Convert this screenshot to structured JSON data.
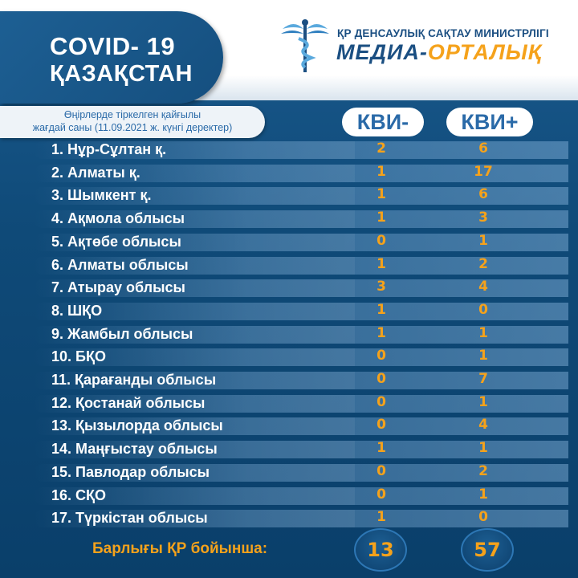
{
  "header": {
    "title_line1": "COVID- 19",
    "title_line2": "ҚАЗАҚСТАН",
    "ministry": "ҚР ДЕНСАУЛЫҚ САҚТАУ МИНИСТРЛІГІ",
    "media_part1": "МЕДИА-",
    "media_part2": "ОРТАЛЫҚ"
  },
  "subtitle": {
    "line1": "Өңірлерде тіркелген қайғылы",
    "line2": "жағдай саны (11.09.2021 ж. күнгі деректер)"
  },
  "columns": {
    "minus": "КВИ-",
    "plus": "КВИ+"
  },
  "rows": [
    {
      "label": "1. Нұр-Сұлтан қ.",
      "minus": "2",
      "plus": "6"
    },
    {
      "label": "2. Алматы қ.",
      "minus": "1",
      "plus": "17"
    },
    {
      "label": "3. Шымкент қ.",
      "minus": "1",
      "plus": "6"
    },
    {
      "label": "4. Ақмола облысы",
      "minus": "1",
      "plus": "3"
    },
    {
      "label": "5. Ақтөбе облысы",
      "minus": "0",
      "plus": "1"
    },
    {
      "label": "6. Алматы облысы",
      "minus": "1",
      "plus": "2"
    },
    {
      "label": "7. Атырау облысы",
      "minus": "3",
      "plus": "4"
    },
    {
      "label": "8. ШҚО",
      "minus": "1",
      "plus": "0"
    },
    {
      "label": "9. Жамбыл облысы",
      "minus": "1",
      "plus": "1"
    },
    {
      "label": "10. БҚО",
      "minus": "0",
      "plus": "1"
    },
    {
      "label": "11. Қарағанды облысы",
      "minus": "0",
      "plus": "7"
    },
    {
      "label": "12. Қостанай облысы",
      "minus": "0",
      "plus": "1"
    },
    {
      "label": "13. Қызылорда облысы",
      "minus": "0",
      "plus": "4"
    },
    {
      "label": "14. Маңғыстау облысы",
      "minus": "1",
      "plus": "1"
    },
    {
      "label": "15. Павлодар облысы",
      "minus": "0",
      "plus": "2"
    },
    {
      "label": "16. СҚО",
      "minus": "0",
      "plus": "1"
    },
    {
      "label": "17. Түркістан облысы",
      "minus": "1",
      "plus": "0"
    }
  ],
  "totals": {
    "label": "Барлығы ҚР бойынша:",
    "minus": "13",
    "plus": "57"
  },
  "colors": {
    "accent": "#f5a21b",
    "brand_blue": "#1b4f82",
    "background": "#0f4a78"
  },
  "icons": {
    "logo": "caduceus-icon"
  }
}
